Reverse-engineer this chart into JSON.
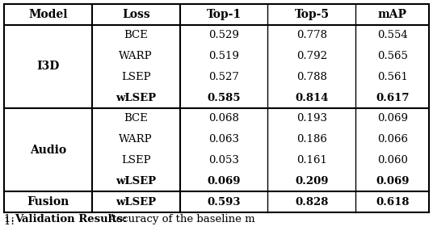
{
  "title_text": "1: ",
  "title_bold": "Validation Results:",
  "title_normal": " Accuracy of the baseline m",
  "headers": [
    "Model",
    "Loss",
    "Top-1",
    "Top-5",
    "mAP"
  ],
  "sections": [
    {
      "model": "I3D",
      "rows": [
        {
          "loss": "BCE",
          "top1": "0.529",
          "top5": "0.778",
          "map": "0.554",
          "bold": false
        },
        {
          "loss": "WARP",
          "top1": "0.519",
          "top5": "0.792",
          "map": "0.565",
          "bold": false
        },
        {
          "loss": "LSEP",
          "top1": "0.527",
          "top5": "0.788",
          "map": "0.561",
          "bold": false
        },
        {
          "loss": "wLSEP",
          "top1": "0.585",
          "top5": "0.814",
          "map": "0.617",
          "bold": true
        }
      ]
    },
    {
      "model": "Audio",
      "rows": [
        {
          "loss": "BCE",
          "top1": "0.068",
          "top5": "0.193",
          "map": "0.069",
          "bold": false
        },
        {
          "loss": "WARP",
          "top1": "0.063",
          "top5": "0.186",
          "map": "0.066",
          "bold": false
        },
        {
          "loss": "LSEP",
          "top1": "0.053",
          "top5": "0.161",
          "map": "0.060",
          "bold": false
        },
        {
          "loss": "wLSEP",
          "top1": "0.069",
          "top5": "0.209",
          "map": "0.069",
          "bold": true
        }
      ]
    }
  ],
  "fusion_row": {
    "model": "Fusion",
    "loss": "wLSEP",
    "top1": "0.593",
    "top5": "0.828",
    "map": "0.618"
  },
  "bg_color": "#ffffff",
  "text_color": "#000000",
  "border_color": "#000000",
  "font_size": 9.5,
  "header_font_size": 10
}
